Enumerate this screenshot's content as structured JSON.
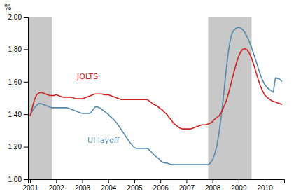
{
  "chart_data": {
    "type": "line",
    "ylabel": "%",
    "xlim": [
      2000.917,
      2010.75
    ],
    "xticks": [
      2001,
      2002,
      2003,
      2004,
      2005,
      2006,
      2007,
      2008,
      2009,
      2010
    ],
    "ylim": [
      1.0,
      2.0
    ],
    "yticks": [
      {
        "value": 1.0,
        "label": "1.00"
      },
      {
        "value": 1.2,
        "label": "1.20"
      },
      {
        "value": 1.4,
        "label": "1.40"
      },
      {
        "value": 1.6,
        "label": "1.60"
      },
      {
        "value": 1.8,
        "label": "1.80"
      },
      {
        "value": 2.0,
        "label": "2.00"
      }
    ],
    "grid": false,
    "bands": [
      [
        2000.917,
        2001.833
      ],
      [
        2007.833,
        2009.5
      ]
    ],
    "band_color": "#c8c8c8",
    "x": [
      2001.0,
      2001.083,
      2001.167,
      2001.25,
      2001.333,
      2001.417,
      2001.5,
      2001.583,
      2001.667,
      2001.75,
      2001.833,
      2001.917,
      2002.0,
      2002.083,
      2002.167,
      2002.25,
      2002.333,
      2002.417,
      2002.5,
      2002.583,
      2002.667,
      2002.75,
      2002.833,
      2002.917,
      2003.0,
      2003.083,
      2003.167,
      2003.25,
      2003.333,
      2003.417,
      2003.5,
      2003.583,
      2003.667,
      2003.75,
      2003.833,
      2003.917,
      2004.0,
      2004.083,
      2004.167,
      2004.25,
      2004.333,
      2004.417,
      2004.5,
      2004.583,
      2004.667,
      2004.75,
      2004.833,
      2004.917,
      2005.0,
      2005.083,
      2005.167,
      2005.25,
      2005.333,
      2005.417,
      2005.5,
      2005.583,
      2005.667,
      2005.75,
      2005.833,
      2005.917,
      2006.0,
      2006.083,
      2006.167,
      2006.25,
      2006.333,
      2006.417,
      2006.5,
      2006.583,
      2006.667,
      2006.75,
      2006.833,
      2006.917,
      2007.0,
      2007.083,
      2007.167,
      2007.25,
      2007.333,
      2007.417,
      2007.5,
      2007.583,
      2007.667,
      2007.75,
      2007.833,
      2007.917,
      2008.0,
      2008.083,
      2008.167,
      2008.25,
      2008.333,
      2008.417,
      2008.5,
      2008.583,
      2008.667,
      2008.75,
      2008.833,
      2008.917,
      2009.0,
      2009.083,
      2009.167,
      2009.25,
      2009.333,
      2009.417,
      2009.5,
      2009.583,
      2009.667,
      2009.75,
      2009.833,
      2009.917,
      2010.0,
      2010.083,
      2010.167,
      2010.25,
      2010.333,
      2010.417,
      2010.5,
      2010.583,
      2010.667
    ],
    "series": [
      {
        "color": "#5588aa",
        "values": [
          1.39,
          1.42,
          1.44,
          1.455,
          1.465,
          1.465,
          1.46,
          1.455,
          1.45,
          1.445,
          1.44,
          1.44,
          1.44,
          1.44,
          1.44,
          1.44,
          1.44,
          1.44,
          1.435,
          1.43,
          1.425,
          1.42,
          1.415,
          1.41,
          1.405,
          1.405,
          1.405,
          1.405,
          1.41,
          1.43,
          1.445,
          1.445,
          1.44,
          1.43,
          1.42,
          1.41,
          1.4,
          1.385,
          1.375,
          1.36,
          1.345,
          1.325,
          1.305,
          1.285,
          1.265,
          1.245,
          1.225,
          1.21,
          1.195,
          1.19,
          1.19,
          1.19,
          1.19,
          1.19,
          1.19,
          1.18,
          1.165,
          1.15,
          1.14,
          1.13,
          1.115,
          1.105,
          1.1,
          1.1,
          1.095,
          1.09,
          1.09,
          1.09,
          1.09,
          1.09,
          1.09,
          1.09,
          1.09,
          1.09,
          1.09,
          1.09,
          1.09,
          1.09,
          1.09,
          1.09,
          1.09,
          1.09,
          1.09,
          1.1,
          1.12,
          1.155,
          1.205,
          1.285,
          1.385,
          1.505,
          1.635,
          1.755,
          1.845,
          1.9,
          1.92,
          1.93,
          1.935,
          1.93,
          1.92,
          1.9,
          1.875,
          1.845,
          1.81,
          1.77,
          1.73,
          1.685,
          1.645,
          1.61,
          1.585,
          1.565,
          1.555,
          1.545,
          1.535,
          1.625,
          1.62,
          1.615,
          1.6
        ]
      },
      {
        "color": "#cc2222",
        "values": [
          1.39,
          1.44,
          1.49,
          1.52,
          1.53,
          1.535,
          1.53,
          1.525,
          1.52,
          1.515,
          1.515,
          1.515,
          1.52,
          1.515,
          1.51,
          1.505,
          1.505,
          1.505,
          1.505,
          1.505,
          1.5,
          1.495,
          1.495,
          1.495,
          1.495,
          1.5,
          1.505,
          1.51,
          1.515,
          1.52,
          1.525,
          1.525,
          1.525,
          1.525,
          1.52,
          1.52,
          1.52,
          1.515,
          1.51,
          1.505,
          1.5,
          1.495,
          1.49,
          1.49,
          1.49,
          1.49,
          1.49,
          1.49,
          1.49,
          1.49,
          1.49,
          1.49,
          1.49,
          1.49,
          1.49,
          1.48,
          1.47,
          1.46,
          1.455,
          1.445,
          1.435,
          1.425,
          1.41,
          1.4,
          1.38,
          1.365,
          1.345,
          1.335,
          1.325,
          1.315,
          1.31,
          1.31,
          1.31,
          1.31,
          1.31,
          1.315,
          1.32,
          1.325,
          1.33,
          1.335,
          1.335,
          1.335,
          1.34,
          1.345,
          1.355,
          1.37,
          1.38,
          1.39,
          1.41,
          1.44,
          1.47,
          1.51,
          1.56,
          1.615,
          1.665,
          1.715,
          1.755,
          1.785,
          1.8,
          1.805,
          1.795,
          1.775,
          1.745,
          1.705,
          1.66,
          1.615,
          1.575,
          1.545,
          1.52,
          1.505,
          1.495,
          1.485,
          1.48,
          1.475,
          1.47,
          1.465,
          1.46
        ]
      }
    ],
    "annotations": [
      {
        "text": "JOLTS",
        "x": 2002.8,
        "y": 1.615,
        "color": "#cc2222"
      },
      {
        "text": "UI layoff",
        "x": 2003.2,
        "y": 1.225,
        "color": "#5588aa"
      }
    ]
  }
}
